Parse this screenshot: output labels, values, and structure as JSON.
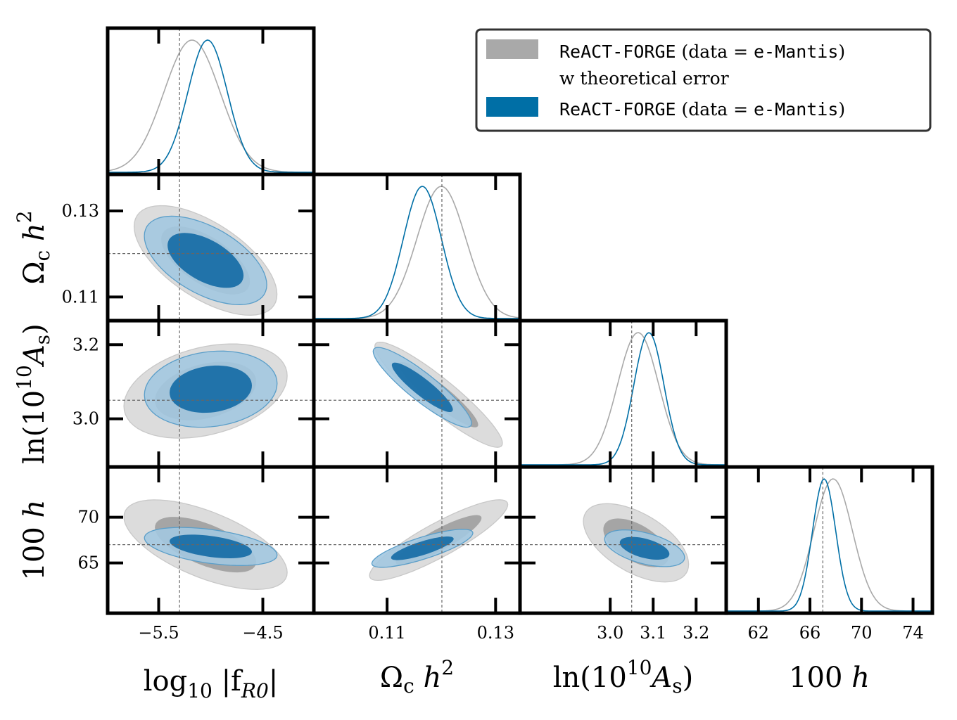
{
  "chart_data": {
    "type": "corner",
    "title": "",
    "parameters": [
      {
        "id": "fr0",
        "label": "log10|fR0|",
        "fiducial": -5.3,
        "range": [
          -5.99,
          -4.01
        ],
        "ticks": [
          {
            "v": -5.5,
            "label": "−5.5"
          },
          {
            "v": -4.5,
            "label": "−4.5"
          }
        ]
      },
      {
        "id": "och2",
        "label": "Ωc h²",
        "fiducial": 0.1201,
        "range": [
          0.0965,
          0.1345
        ],
        "ticks": [
          {
            "v": 0.11,
            "label": "0.11"
          },
          {
            "v": 0.13,
            "label": "0.13"
          }
        ]
      },
      {
        "id": "las",
        "label": "ln(10¹⁰As)",
        "fiducial": 3.05,
        "range": [
          2.79,
          3.27
        ],
        "ticks": [
          {
            "v": 3.0,
            "label": "3.0"
          },
          {
            "v": 3.1,
            "label": "3.1"
          },
          {
            "v": 3.2,
            "label": "3.2"
          }
        ]
      },
      {
        "id": "h",
        "label": "100h",
        "fiducial": 67.0,
        "range": [
          59.5,
          75.5
        ],
        "ticks": [
          {
            "v": 62,
            "label": "62"
          },
          {
            "v": 66,
            "label": "66"
          },
          {
            "v": 70,
            "label": "70"
          },
          {
            "v": 74,
            "label": "74"
          }
        ]
      }
    ],
    "diagonal_labels": {
      "fr0": {
        "text": "log",
        "sub": "10",
        "tail": "|f",
        "sub2": "R0",
        "end": "|"
      },
      "och2": {
        "text": "Ω",
        "sub": "c",
        "tail": "h",
        "sup": "2"
      },
      "las": {
        "text": "ln(10",
        "sup": "10",
        "tail": "A",
        "sub": "s",
        "end": ")"
      },
      "h": {
        "text": "100",
        "tail": "h"
      }
    },
    "row_labels": {
      "och2": "Ωc h²",
      "las": "ln(10¹⁰As)",
      "h": "100h"
    },
    "y_ticks": {
      "och2": [
        {
          "v": 0.11,
          "label": "0.11"
        },
        {
          "v": 0.13,
          "label": "0.13"
        }
      ],
      "las": [
        {
          "v": 3.0,
          "label": "3.0"
        },
        {
          "v": 3.2,
          "label": "3.2"
        }
      ],
      "h": [
        {
          "v": 65,
          "label": "65"
        },
        {
          "v": 70,
          "label": "70"
        }
      ]
    },
    "y_ranges": {
      "och2": [
        0.1045,
        0.1385
      ],
      "las": [
        2.87,
        3.265
      ],
      "h": [
        59.5,
        75.5
      ]
    },
    "series": [
      {
        "name": "ReACT-FORGE (data = e-Mantis) w theoretical error",
        "color": "#a9a9a9",
        "fill_inner": "#a5a5a5",
        "fill_outer": "#dcdcdc",
        "marginals": {
          "fr0": {
            "mean": -5.18,
            "sigma": 0.27,
            "peak": 1.0
          },
          "och2": {
            "mean": 0.12,
            "sigma": 0.0045,
            "peak": 1.0
          },
          "las": {
            "mean": 3.065,
            "sigma": 0.048,
            "peak": 1.0
          },
          "h": {
            "mean": 67.8,
            "sigma": 1.5,
            "peak": 1.0
          }
        },
        "contours": {
          "och2|fr0": {
            "mx": -5.05,
            "my": 0.1185,
            "sx": 0.28,
            "sy": 0.0052,
            "rho": -0.62
          },
          "las|fr0": {
            "mx": -5.05,
            "my": 3.075,
            "sx": 0.32,
            "sy": 0.052,
            "rho": 0.32
          },
          "las|och2": {
            "mx": 0.1195,
            "my": 3.065,
            "sx": 0.0048,
            "sy": 0.058,
            "rho": -0.92
          },
          "h|fr0": {
            "mx": -5.05,
            "my": 67.0,
            "sx": 0.32,
            "sy": 2.0,
            "rho": -0.62
          },
          "h|och2": {
            "mx": 0.1195,
            "my": 67.5,
            "sx": 0.0052,
            "sy": 1.8,
            "rho": 0.88
          },
          "h|las": {
            "mx": 3.06,
            "my": 67.2,
            "sx": 0.05,
            "sy": 1.75,
            "rho": -0.55
          }
        }
      },
      {
        "name": "ReACT-FORGE (data = e-Mantis)",
        "color": "#006fa6",
        "fill_inner": "#1a6fa8",
        "fill_outer": "#a3c8e0",
        "marginals": {
          "fr0": {
            "mean": -5.03,
            "sigma": 0.19,
            "peak": 1.0
          },
          "och2": {
            "mean": 0.1165,
            "sigma": 0.0035,
            "peak": 1.0
          },
          "las": {
            "mean": 3.09,
            "sigma": 0.035,
            "peak": 1.0
          },
          "h": {
            "mean": 67.1,
            "sigma": 0.9,
            "peak": 1.0
          }
        },
        "contours": {
          "och2|fr0": {
            "mx": -5.05,
            "my": 0.1185,
            "sx": 0.24,
            "sy": 0.0042,
            "rho": -0.55
          },
          "las|fr0": {
            "mx": -5.0,
            "my": 3.08,
            "sx": 0.26,
            "sy": 0.042,
            "rho": 0.15
          },
          "las|och2": {
            "mx": 0.1165,
            "my": 3.085,
            "sx": 0.0037,
            "sy": 0.044,
            "rho": -0.9
          },
          "h|fr0": {
            "mx": -5.0,
            "my": 66.8,
            "sx": 0.26,
            "sy": 0.85,
            "rho": -0.45
          },
          "h|och2": {
            "mx": 0.1165,
            "my": 66.6,
            "sx": 0.0038,
            "sy": 0.85,
            "rho": 0.8
          },
          "h|las": {
            "mx": 3.08,
            "my": 66.6,
            "sx": 0.038,
            "sy": 0.82,
            "rho": -0.5
          }
        }
      }
    ],
    "legend": {
      "position": "top-right",
      "entries": [
        {
          "parts": [
            {
              "t": "ReACT-FORGE",
              "mono": true
            },
            {
              "t": "  (data = ",
              "mono": false
            },
            {
              "t": "e-Mantis",
              "mono": true
            },
            {
              "t": ")",
              "mono": false
            }
          ],
          "line2": "w theoretical error",
          "color": "#a9a9a9"
        },
        {
          "parts": [
            {
              "t": "ReACT-FORGE",
              "mono": true
            },
            {
              "t": "  (data = ",
              "mono": false
            },
            {
              "t": "e-Mantis",
              "mono": true
            },
            {
              "t": ")",
              "mono": false
            }
          ],
          "line2": "",
          "color": "#006fa6"
        }
      ]
    }
  }
}
